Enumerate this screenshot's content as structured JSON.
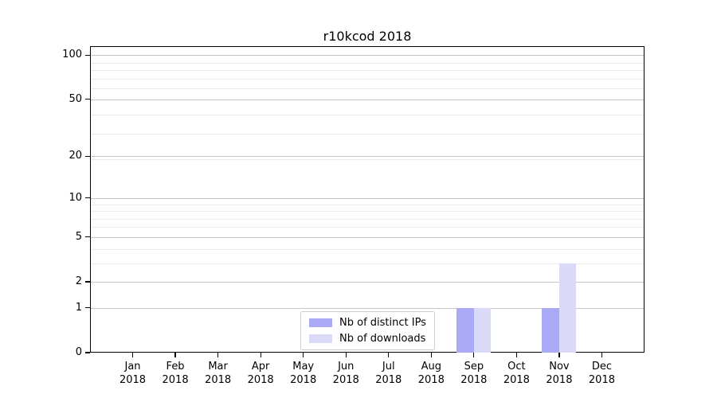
{
  "chart_data": {
    "type": "bar",
    "title": "r10kcod 2018",
    "x": [
      {
        "month": "Jan",
        "year": "2018"
      },
      {
        "month": "Feb",
        "year": "2018"
      },
      {
        "month": "Mar",
        "year": "2018"
      },
      {
        "month": "Apr",
        "year": "2018"
      },
      {
        "month": "May",
        "year": "2018"
      },
      {
        "month": "Jun",
        "year": "2018"
      },
      {
        "month": "Jul",
        "year": "2018"
      },
      {
        "month": "Aug",
        "year": "2018"
      },
      {
        "month": "Sep",
        "year": "2018"
      },
      {
        "month": "Oct",
        "year": "2018"
      },
      {
        "month": "Nov",
        "year": "2018"
      },
      {
        "month": "Dec",
        "year": "2018"
      }
    ],
    "series": [
      {
        "name": "Nb of distinct IPs",
        "color": "#a9a9f5",
        "values": [
          0,
          0,
          0,
          0,
          0,
          0,
          0,
          0,
          1,
          0,
          1,
          0
        ]
      },
      {
        "name": "Nb of downloads",
        "color": "#dadaf8",
        "values": [
          0,
          0,
          0,
          0,
          0,
          0,
          0,
          0,
          1,
          0,
          3,
          0
        ]
      }
    ],
    "y_axis": {
      "scale": "log1p",
      "tick_values": [
        0,
        1,
        2,
        5,
        10,
        20,
        50,
        100
      ],
      "tick_labels": [
        "0",
        "1",
        "2",
        "5",
        "10",
        "20",
        "50",
        "100"
      ],
      "minor_gridline_values": [
        3,
        4,
        6,
        7,
        8,
        9,
        19,
        29,
        39,
        59,
        69,
        79,
        89
      ],
      "ymax": 115
    },
    "grid": true,
    "legend": {
      "location": "lower center inside"
    }
  },
  "colors": {
    "grid_major": "#c6c6c6",
    "grid_minor": "#ebebeb",
    "axis": "#000000",
    "text": "#000000",
    "background": "#ffffff"
  }
}
